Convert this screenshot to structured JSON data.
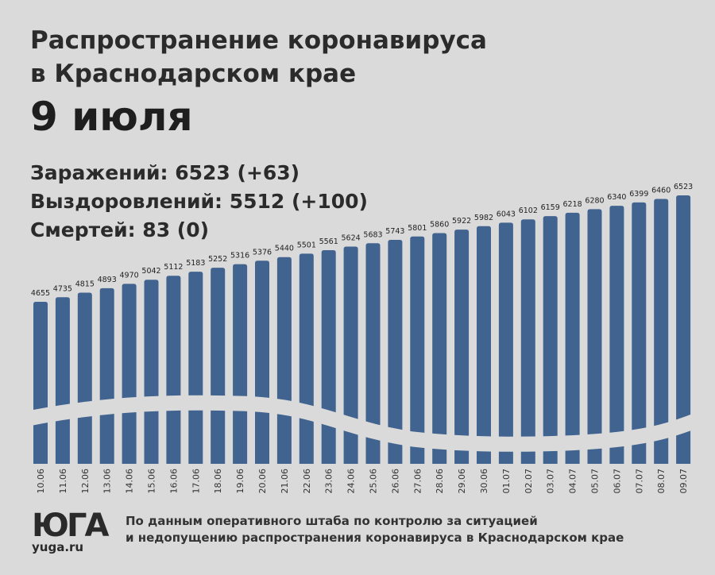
{
  "title_line1": "Распространение коронавируса",
  "title_line2": "в Краснодарском крае",
  "date": "9 июля",
  "stats": {
    "infected": "Заражений:  6523 (+63)",
    "recovered": "Выздоровлений: 5512 (+100)",
    "deaths": "Смертей: 83 (0)"
  },
  "colors": {
    "bar": "#41638f",
    "background": "#dadada"
  },
  "chart_data": {
    "type": "bar",
    "title": "Заражений",
    "categories": [
      "10.06",
      "11.06",
      "12.06",
      "13.06",
      "14.06",
      "15.06",
      "16.06",
      "17.06",
      "18.06",
      "19.06",
      "20.06",
      "21.06",
      "22.06",
      "23.06",
      "24.06",
      "25.06",
      "26.06",
      "27.06",
      "28.06",
      "29.06",
      "30.06",
      "01.07",
      "02.07",
      "03.07",
      "04.07",
      "05.07",
      "06.07",
      "07.07",
      "08.07",
      "09.07"
    ],
    "values": [
      4655,
      4735,
      4815,
      4893,
      4970,
      5042,
      5112,
      5183,
      5252,
      5316,
      5376,
      5440,
      5501,
      5561,
      5624,
      5683,
      5743,
      5801,
      5860,
      5922,
      5982,
      6043,
      6102,
      6159,
      6218,
      6280,
      6340,
      6399,
      6460,
      6523
    ],
    "xlabel": "",
    "ylabel": "",
    "grid": false
  },
  "logo": {
    "mark": "ЮГА",
    "url": "yuga.ru"
  },
  "source_line1": "По данным оперативного штаба по контролю за ситуацией",
  "source_line2": "и недопущению распространения коронавируса в Краснодарском крае"
}
